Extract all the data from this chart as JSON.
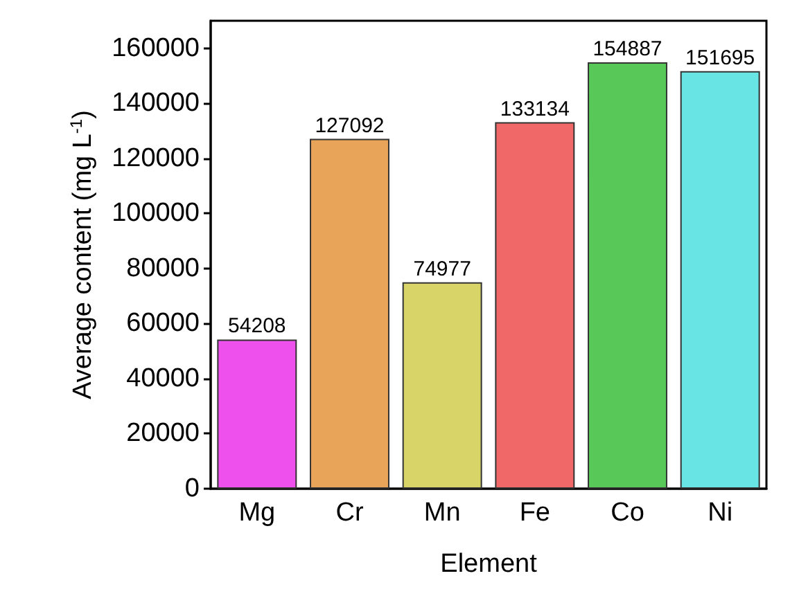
{
  "chart_data": {
    "type": "bar",
    "xlabel": "Element",
    "ylabel": "Average content (mg L$^{-1}$)",
    "categories": [
      "Mg",
      "Cr",
      "Mn",
      "Fe",
      "Co",
      "Ni"
    ],
    "values": [
      54208,
      127092,
      74977,
      133134,
      154887,
      151695
    ],
    "colors": [
      "#ee50ee",
      "#e8a55a",
      "#d8d468",
      "#f06868",
      "#58c858",
      "#68e4e4"
    ],
    "ylim": [
      0,
      170000
    ],
    "yticks": [
      0,
      20000,
      40000,
      60000,
      80000,
      100000,
      120000,
      140000,
      160000
    ],
    "data_labels": true,
    "grid": false
  }
}
